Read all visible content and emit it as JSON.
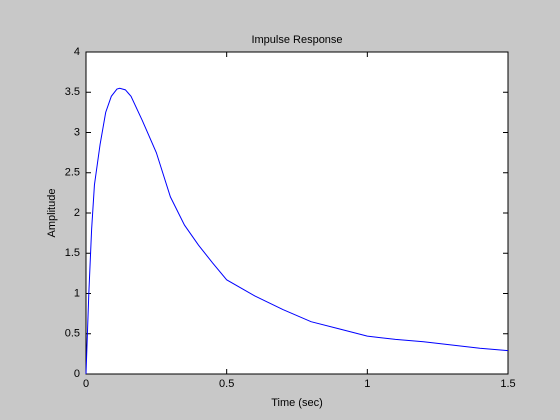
{
  "chart_data": {
    "type": "line",
    "title": "Impulse Response",
    "x_label": "Time (sec)",
    "y_label": "Amplitude",
    "x": [
      0,
      0.01,
      0.02,
      0.03,
      0.05,
      0.07,
      0.09,
      0.11,
      0.12,
      0.14,
      0.16,
      0.2,
      0.25,
      0.3,
      0.35,
      0.4,
      0.45,
      0.5,
      0.6,
      0.7,
      0.8,
      0.9,
      1.0,
      1.1,
      1.2,
      1.3,
      1.4,
      1.5
    ],
    "series": [
      {
        "name": "Impulse Response",
        "color": "#0000ff",
        "values": [
          0,
          1.0,
          1.8,
          2.35,
          2.85,
          3.25,
          3.45,
          3.54,
          3.55,
          3.53,
          3.45,
          3.15,
          2.75,
          2.2,
          1.85,
          1.6,
          1.38,
          1.17,
          0.97,
          0.8,
          0.65,
          0.56,
          0.47,
          0.43,
          0.4,
          0.36,
          0.32,
          0.29
        ]
      }
    ],
    "xlim": [
      0,
      1.5
    ],
    "xticks": [
      0,
      0.5,
      1,
      1.5
    ],
    "ylim": [
      0,
      4
    ],
    "yticks": [
      0,
      0.5,
      1,
      1.5,
      2,
      2.5,
      3,
      3.5,
      4
    ]
  }
}
